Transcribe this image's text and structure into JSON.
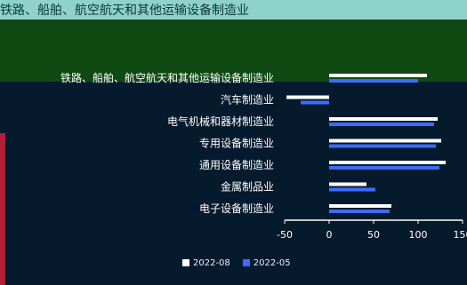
{
  "title": "铁路、船舶、航空航天和其他运输设备制造业",
  "colors": {
    "series_a": "#ffffff",
    "series_b": "#3b6cff",
    "axis": "#ffffff",
    "label_text": "#ffffff"
  },
  "chart_data": {
    "type": "bar",
    "orientation": "horizontal",
    "categories": [
      "铁路、船舶、航空航天和其他运输设备制造业",
      "汽车制造业",
      "电气机械和器材制造业",
      "专用设备制造业",
      "通用设备制造业",
      "金属制品业",
      "电子设备制造业"
    ],
    "series": [
      {
        "name": "2022-08",
        "values": [
          110,
          -48,
          122,
          126,
          131,
          42,
          70
        ]
      },
      {
        "name": "2022-05",
        "values": [
          100,
          -32,
          118,
          120,
          124,
          52,
          68
        ]
      }
    ],
    "xlim": [
      -50,
      150
    ],
    "ticks": [
      "-50",
      "0",
      "50",
      "100",
      "150"
    ],
    "legend_position": "bottom"
  }
}
